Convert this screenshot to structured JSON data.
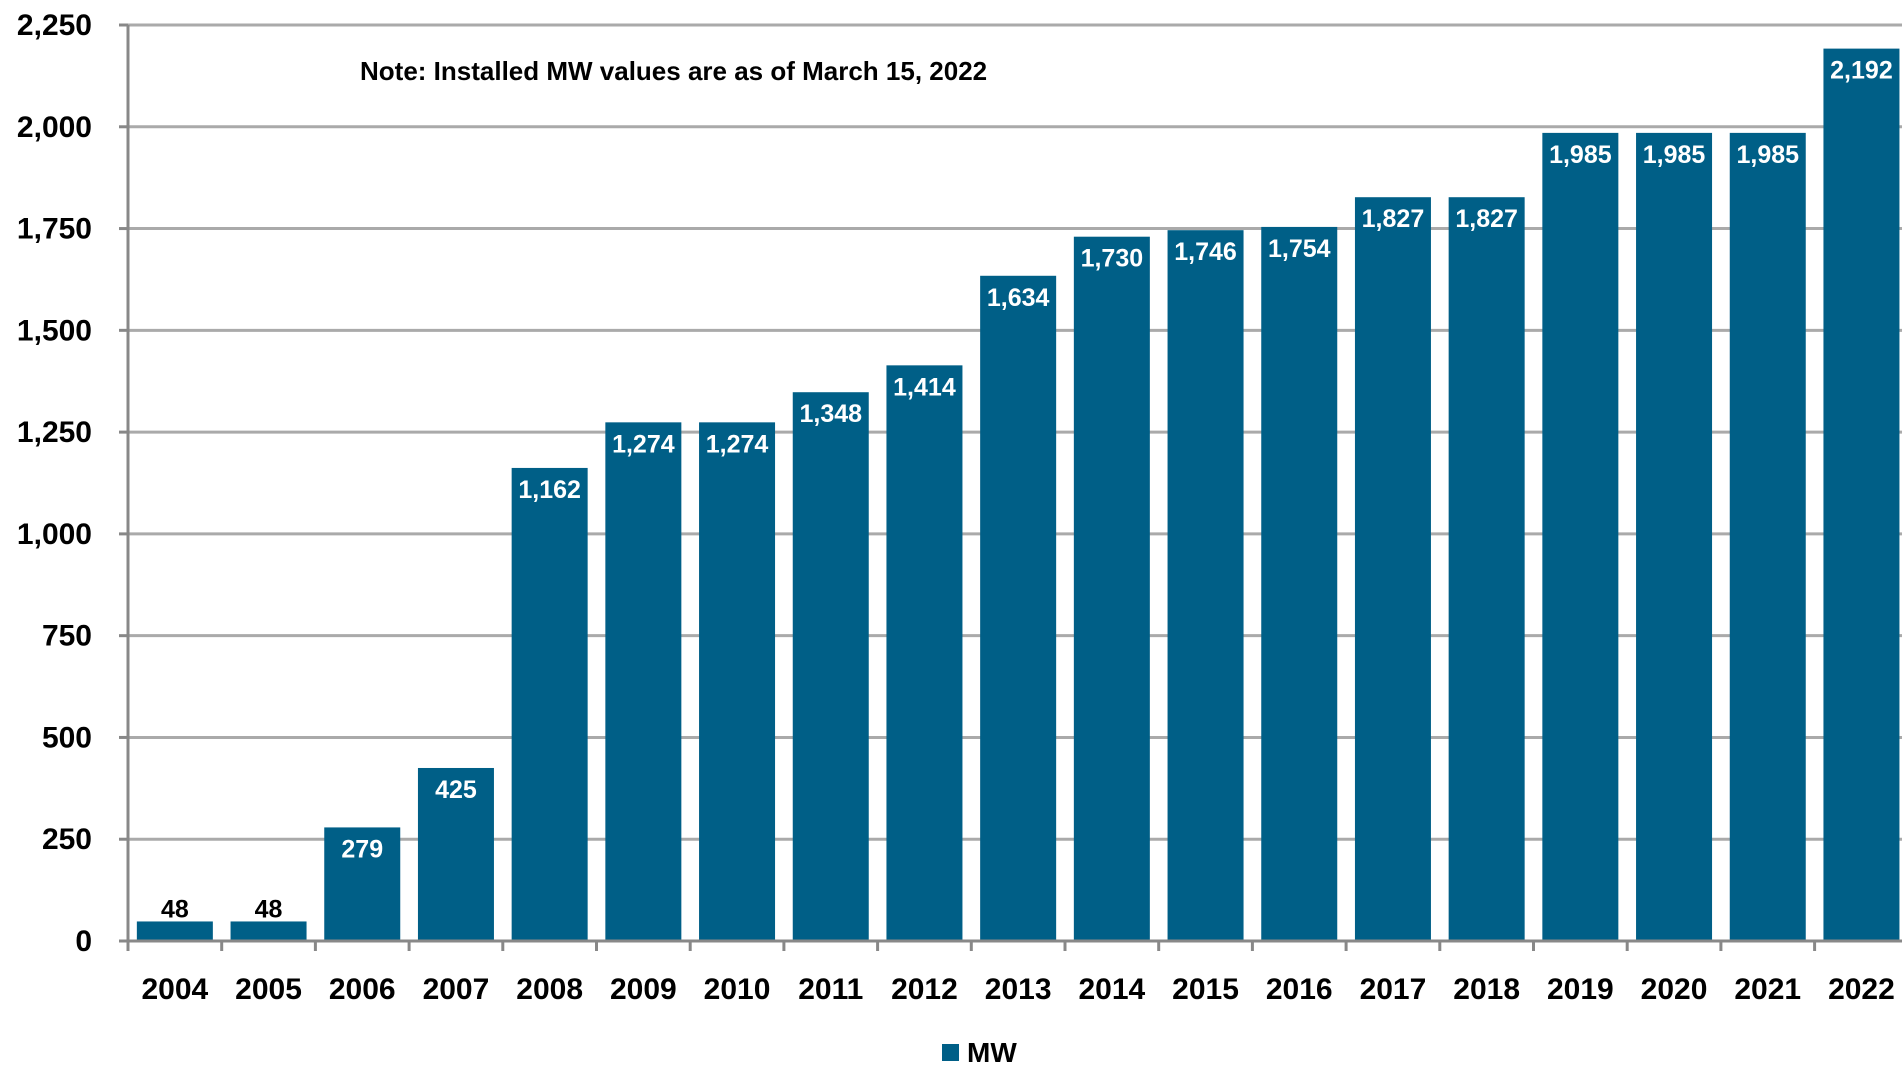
{
  "chart_data": {
    "type": "bar",
    "categories": [
      "2004",
      "2005",
      "2006",
      "2007",
      "2008",
      "2009",
      "2010",
      "2011",
      "2012",
      "2013",
      "2014",
      "2015",
      "2016",
      "2017",
      "2018",
      "2019",
      "2020",
      "2021",
      "2022"
    ],
    "series": [
      {
        "name": "MW",
        "values": [
          48,
          48,
          279,
          425,
          1162,
          1274,
          1274,
          1348,
          1414,
          1634,
          1730,
          1746,
          1754,
          1827,
          1827,
          1985,
          1985,
          1985,
          2192
        ],
        "labels": [
          "48",
          "48",
          "279",
          "425",
          "1,162",
          "1,274",
          "1,274",
          "1,348",
          "1,414",
          "1,634",
          "1,730",
          "1,746",
          "1,754",
          "1,827",
          "1,827",
          "1,985",
          "1,985",
          "1,985",
          "2,192"
        ]
      }
    ],
    "title": "",
    "xlabel": "",
    "ylabel": "",
    "ylim": [
      0,
      2250
    ],
    "yticks": [
      0,
      250,
      500,
      750,
      1000,
      1250,
      1500,
      1750,
      2000,
      2250
    ],
    "ytick_labels": [
      "0",
      "250",
      "500",
      "750",
      "1,000",
      "1,250",
      "1,500",
      "1,750",
      "2,000",
      "2,250"
    ],
    "grid": true,
    "legend_position": "bottom-center",
    "annotation": "Note: Installed MW values are as of March 15, 2022",
    "colors": {
      "bar": "#005f87",
      "grid": "#aaaaaa",
      "axis": "#888888"
    }
  }
}
